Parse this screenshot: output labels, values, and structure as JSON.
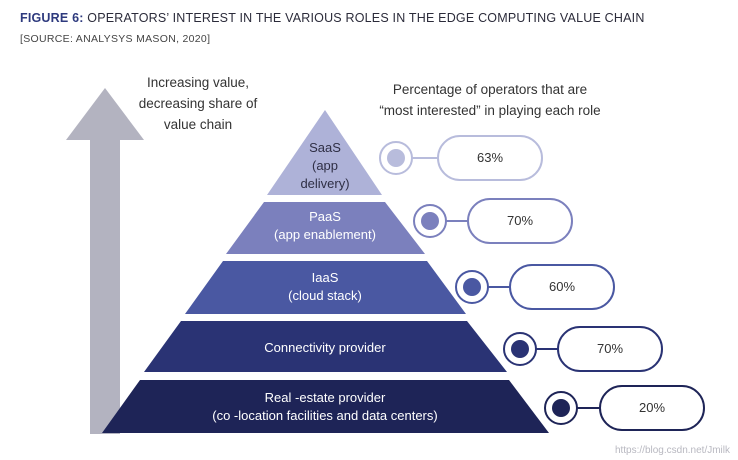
{
  "figure": {
    "number": "FIGURE 6:",
    "title": " OPERATORS’ INTEREST IN THE VARIOUS ROLES IN THE EDGE COMPUTING VALUE CHAIN",
    "source": "[SOURCE: ANALYSYS MASON, 2020]"
  },
  "arrow": {
    "caption_line1": "Increasing value,",
    "caption_line2": "decreasing share of",
    "caption_line3": "value chain"
  },
  "percentage_caption": {
    "line1": "Percentage of operators that are",
    "line2": "“most interested” in playing each role"
  },
  "layers": [
    {
      "line1": "SaaS",
      "line2": "(app",
      "line3": "delivery)",
      "percent": "63%",
      "color": "#aeb2d8"
    },
    {
      "line1": "PaaS",
      "line2": "(app enablement)",
      "percent": "70%",
      "color": "#7b80bd"
    },
    {
      "line1": "IaaS",
      "line2": "(cloud stack)",
      "percent": "60%",
      "color": "#4a58a2"
    },
    {
      "line1": "Connectivity provider",
      "percent": "70%",
      "color": "#2a3374"
    },
    {
      "line1": "Real -estate provider",
      "line2": "(co -location facilities and data centers)",
      "percent": "20%",
      "color": "#1e2457"
    }
  ],
  "arrow_color": "#b3b3c0",
  "watermark": "https://blog.csdn.net/Jmilk"
}
